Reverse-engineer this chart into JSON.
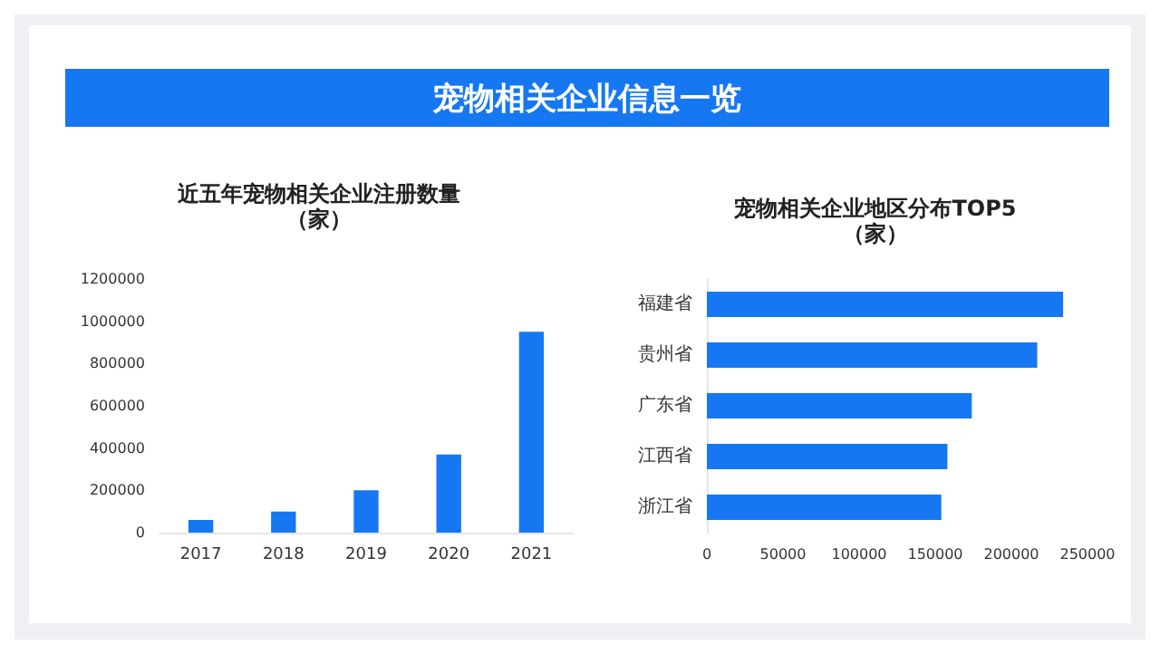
{
  "chart_data": [
    {
      "type": "bar",
      "title": "近五年宠物相关企业注册数量",
      "ylabel": "（家）",
      "annotations": [
        "宠物相关企业信息一览"
      ],
      "categories": [
        "2017",
        "2018",
        "2019",
        "2020",
        "2021"
      ],
      "values": [
        60000,
        100000,
        200000,
        370000,
        950000
      ],
      "color": "#1677f2",
      "ylim": [
        0,
        1200000
      ],
      "yticks": [
        0,
        200000,
        400000,
        600000,
        800000,
        1000000,
        1200000
      ],
      "grid": false
    },
    {
      "type": "bar",
      "orientation": "horizontal",
      "title": "宠物相关企业地区分布TOP5",
      "xlabel": "（家）",
      "categories": [
        "福建省",
        "贵州省",
        "广东省",
        "江西省",
        "浙江省"
      ],
      "values": [
        234000,
        217000,
        174000,
        158000,
        154000
      ],
      "color": "#1677f2",
      "xlim": [
        0,
        250000
      ],
      "xticks": [
        0,
        50000,
        100000,
        150000,
        200000,
        250000
      ],
      "grid": false
    }
  ]
}
